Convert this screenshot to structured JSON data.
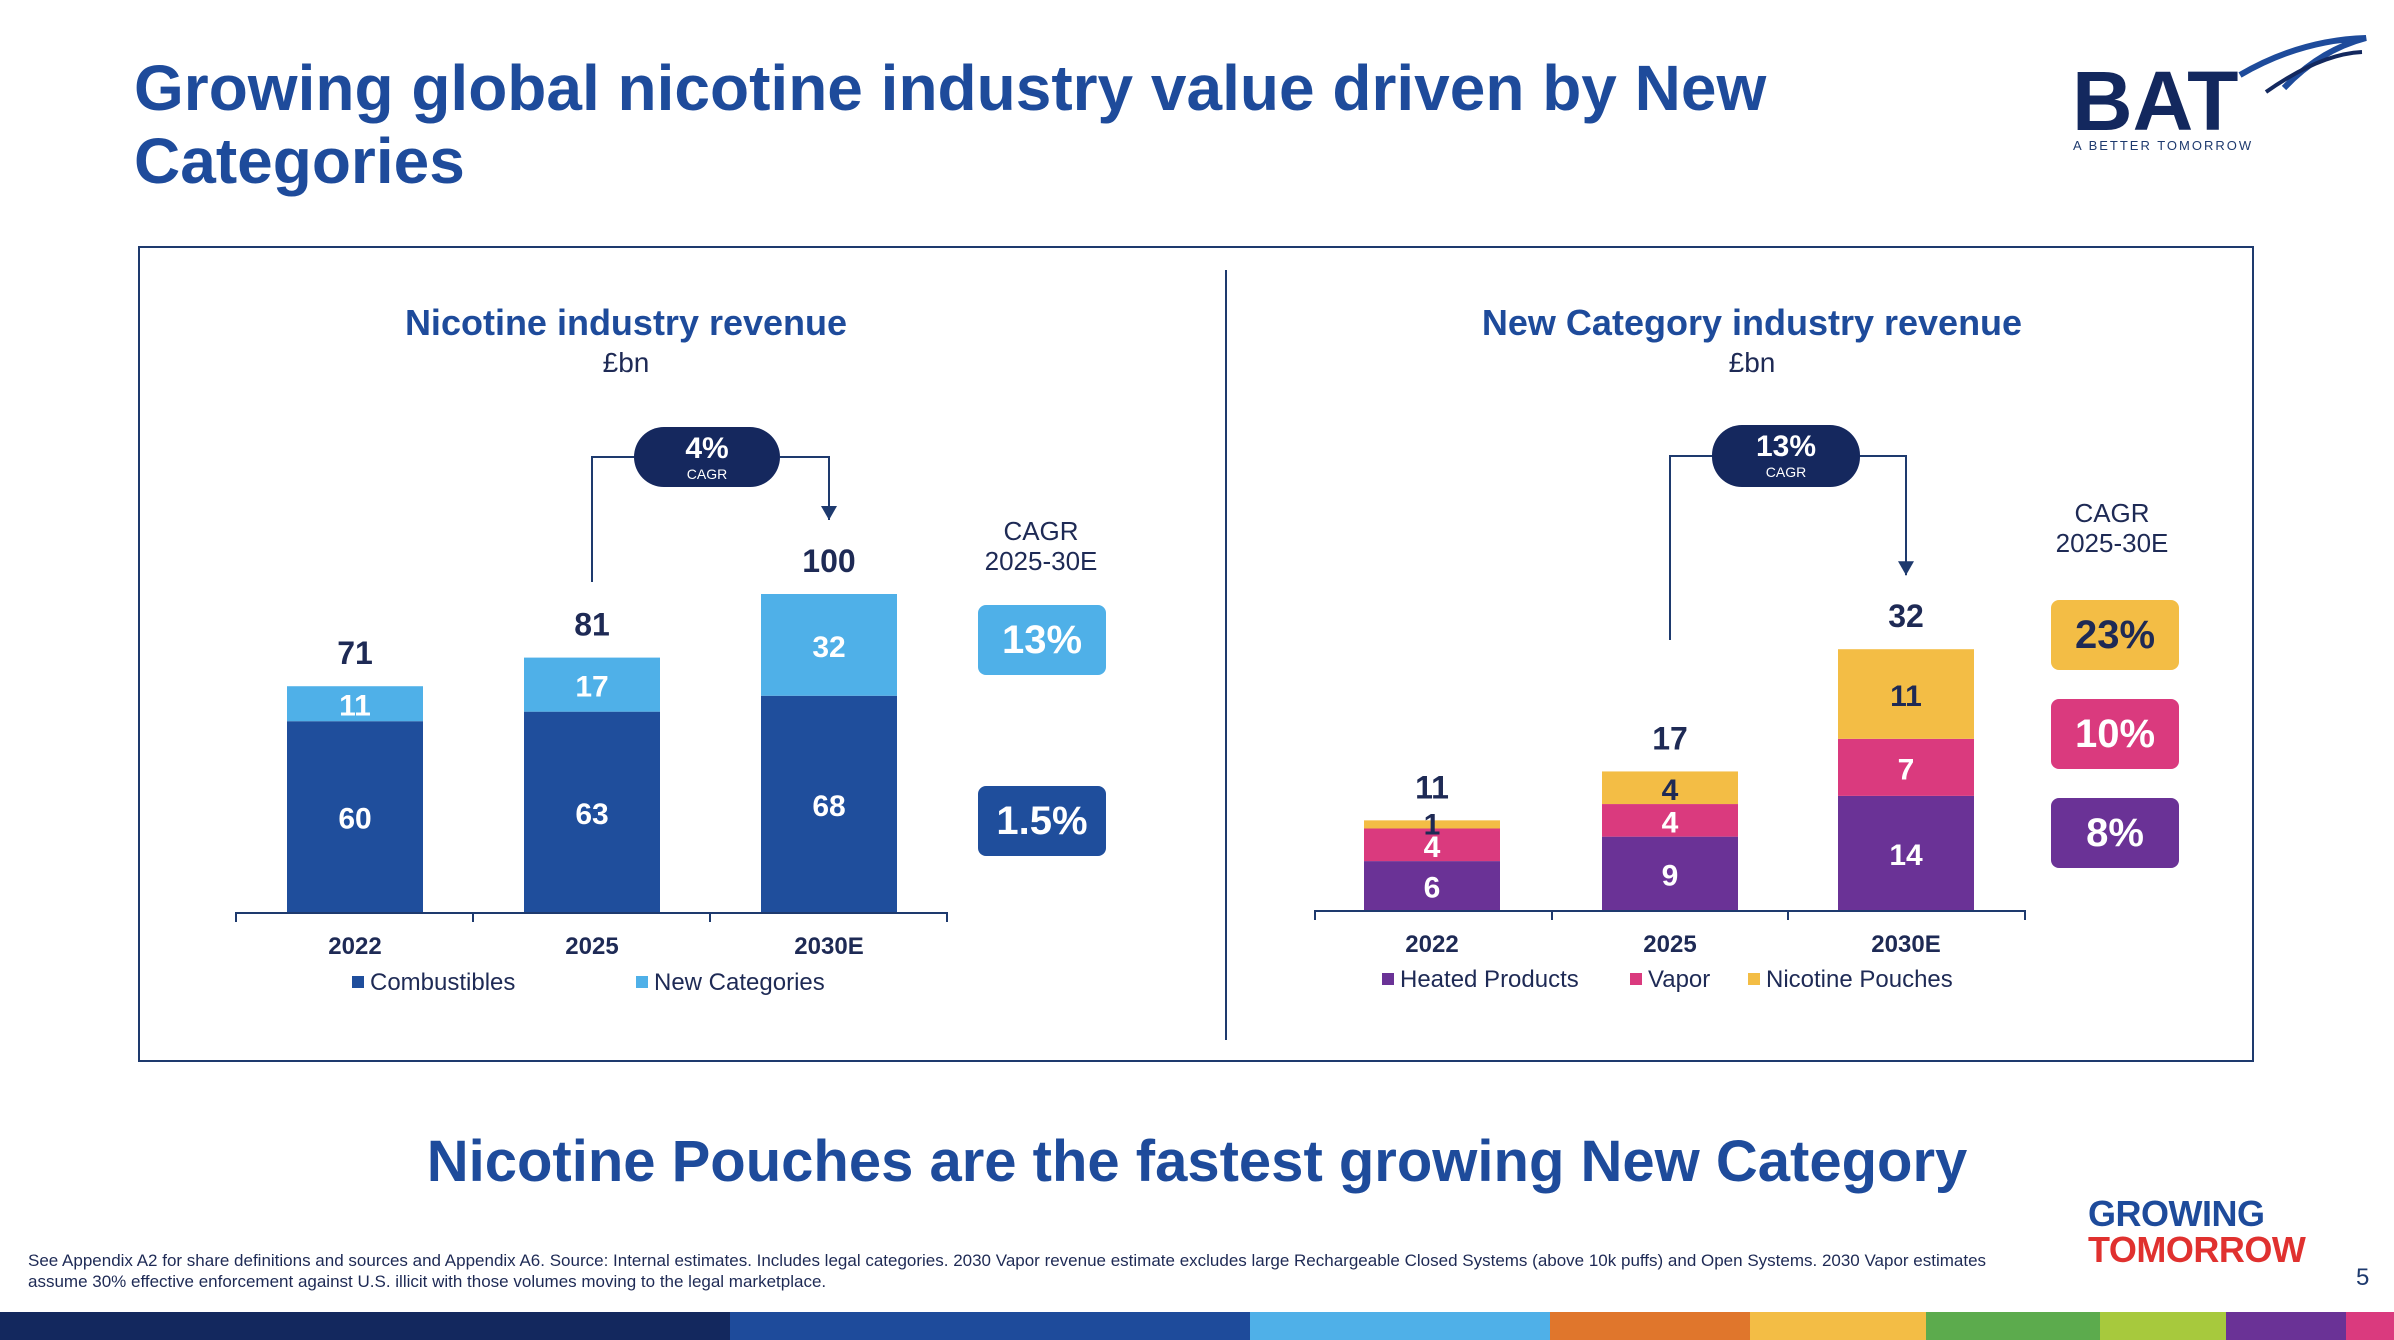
{
  "title": "Growing global nicotine industry value driven by New Categories",
  "logo": {
    "text": "BAT",
    "tagline": "A BETTER TOMORROW"
  },
  "headline": "Nicotine Pouches are the fastest growing New Category",
  "footnote": "See Appendix A2 for share definitions and sources and Appendix A6. Source: Internal estimates. Includes legal categories. 2030 Vapor revenue estimate excludes large Rechargeable Closed Systems (above 10k puffs) and Open Systems. 2030 Vapor estimates assume 30% effective enforcement against U.S. illicit with those volumes moving to the legal marketplace.",
  "growing_tomorrow": {
    "line1": "GROWING",
    "line2": "TOMORROW"
  },
  "page_number": "5",
  "colors": {
    "title": "#1e4b9b",
    "combustibles": "#1f4e9c",
    "new_categories": "#4fb0e8",
    "heated": "#6a3296",
    "vapor": "#da3a7e",
    "pouches": "#f3bd45",
    "pill": "#15285e"
  },
  "strip_colors": [
    "#13285e",
    "#1e4b9b",
    "#4fb0e8",
    "#e0762c",
    "#f3bd45",
    "#5cab4d",
    "#a7c93d",
    "#6a3296",
    "#da3a7e"
  ],
  "chart_data": [
    {
      "type": "bar",
      "stacked": true,
      "title": "Nicotine industry revenue",
      "subtitle": "£bn",
      "categories": [
        "2022",
        "2025",
        "2030E"
      ],
      "series": [
        {
          "name": "Combustibles",
          "values": [
            60,
            63,
            68
          ],
          "color": "#1f4e9c"
        },
        {
          "name": "New Categories",
          "values": [
            11,
            17,
            32
          ],
          "color": "#4fb0e8"
        }
      ],
      "totals": [
        "71",
        "81",
        "100"
      ],
      "cagr_pill": {
        "value": "4%",
        "label": "CAGR"
      },
      "cagr_header": [
        "CAGR",
        "2025-30E"
      ],
      "cagr_badges": [
        {
          "value": "13%",
          "color": "#4fb0e8"
        },
        {
          "value": "1.5%",
          "color": "#1f4e9c"
        }
      ],
      "ylim": [
        0,
        100
      ]
    },
    {
      "type": "bar",
      "stacked": true,
      "title": "New Category industry revenue",
      "subtitle": "£bn",
      "categories": [
        "2022",
        "2025",
        "2030E"
      ],
      "series": [
        {
          "name": "Heated Products",
          "values": [
            6,
            9,
            14
          ],
          "color": "#6a3296"
        },
        {
          "name": "Vapor",
          "values": [
            4,
            4,
            7
          ],
          "color": "#da3a7e"
        },
        {
          "name": "Nicotine Pouches",
          "values": [
            1,
            4,
            11
          ],
          "color": "#f3bd45"
        }
      ],
      "totals": [
        "11",
        "17",
        "32"
      ],
      "cagr_pill": {
        "value": "13%",
        "label": "CAGR"
      },
      "cagr_header": [
        "CAGR",
        "2025-30E"
      ],
      "cagr_badges": [
        {
          "value": "23%",
          "color": "#f3bd45"
        },
        {
          "value": "10%",
          "color": "#da3a7e"
        },
        {
          "value": "8%",
          "color": "#6a3296"
        }
      ],
      "ylim": [
        0,
        32
      ]
    }
  ]
}
